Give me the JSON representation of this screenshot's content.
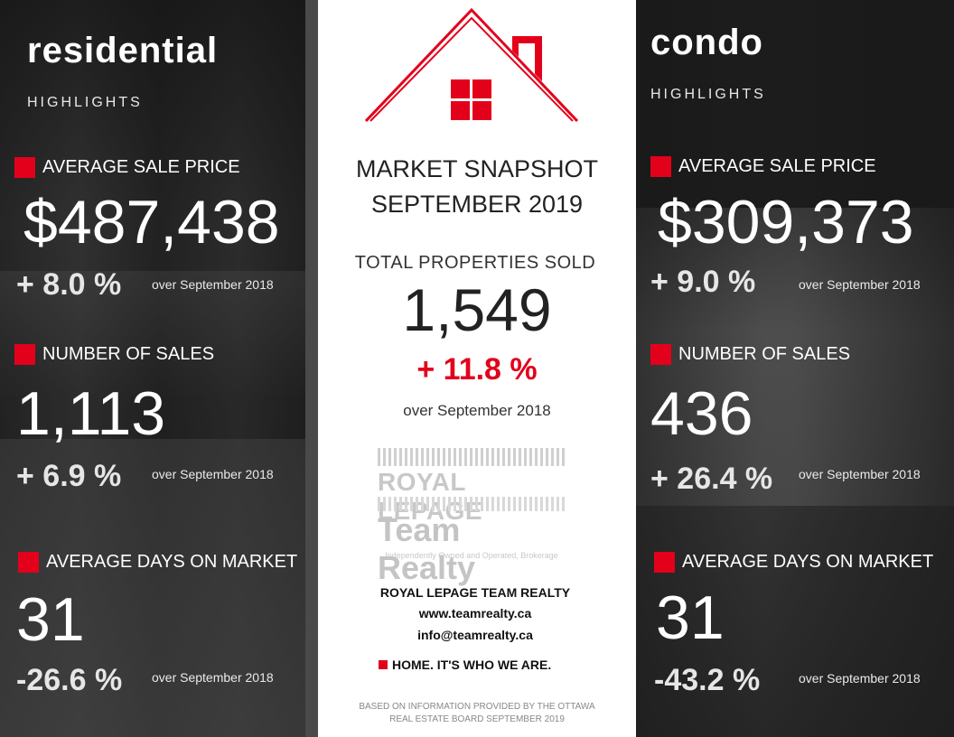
{
  "residential": {
    "title": "residential",
    "subtitle": "HIGHLIGHTS",
    "avg_price_label": "AVERAGE SALE PRICE",
    "avg_price": "$487,438",
    "avg_price_change": "+ 8.0 %",
    "avg_price_over": "over September 2018",
    "sales_label": "NUMBER OF SALES",
    "sales": "1,113",
    "sales_change": "+ 6.9 %",
    "sales_over": "over September 2018",
    "dom_label": "AVERAGE DAYS ON MARKET",
    "dom": "31",
    "dom_change": "-26.6 %",
    "dom_over": "over September 2018"
  },
  "center": {
    "title_line1": "MARKET SNAPSHOT",
    "title_line2": "SEPTEMBER 2019",
    "total_label": "TOTAL PROPERTIES SOLD",
    "total": "1,549",
    "total_change": "+ 11.8 %",
    "total_over": "over September 2018",
    "logo_line1": "ROYAL LEPAGE",
    "logo_line2": "Team Realty",
    "logo_tagline": "Independently Owned and Operated, Brokerage",
    "company": "ROYAL LEPAGE TEAM REALTY",
    "website": "www.teamrealty.ca",
    "email": "info@teamrealty.ca",
    "slogan": "HOME. IT'S WHO WE ARE.",
    "footnote_line1": "BASED ON INFORMATION PROVIDED BY THE OTTAWA",
    "footnote_line2": "REAL ESTATE BOARD SEPTEMBER 2019",
    "house_icon": "house-logo-icon"
  },
  "condo": {
    "title": "condo",
    "subtitle": "HIGHLIGHTS",
    "avg_price_label": "AVERAGE SALE PRICE",
    "avg_price": "$309,373",
    "avg_price_change": "+ 9.0 %",
    "avg_price_over": "over September 2018",
    "sales_label": "NUMBER OF SALES",
    "sales": "436",
    "sales_change": "+ 26.4 %",
    "sales_over": "over September 2018",
    "dom_label": "AVERAGE DAYS ON MARKET",
    "dom": "31",
    "dom_change": "-43.2 %",
    "dom_over": "over September 2018"
  },
  "colors": {
    "accent": "#e3001b",
    "dark_panel": "#262626",
    "light_panel": "#ffffff"
  }
}
